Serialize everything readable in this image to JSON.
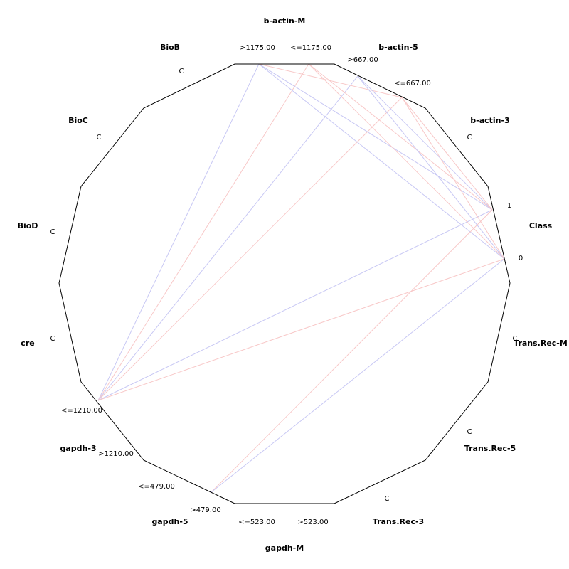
{
  "axes": [
    {
      "name": "b-actin-M",
      "values": [
        ">1175.00",
        "<=1175.00"
      ]
    },
    {
      "name": "b-actin-5",
      "values": [
        ">667.00",
        "<=667.00"
      ]
    },
    {
      "name": "b-actin-3",
      "values": [
        "C"
      ]
    },
    {
      "name": "Class",
      "values": [
        "1",
        "0"
      ]
    },
    {
      "name": "Trans.Rec-M",
      "values": [
        "C"
      ]
    },
    {
      "name": "Trans.Rec-5",
      "values": [
        "C"
      ]
    },
    {
      "name": "Trans.Rec-3",
      "values": [
        "C"
      ]
    },
    {
      "name": "gapdh-M",
      "values": [
        ">523.00",
        "<=523.00"
      ]
    },
    {
      "name": "gapdh-5",
      "values": [
        ">479.00",
        "<=479.00"
      ]
    },
    {
      "name": "gapdh-3",
      "values": [
        ">1210.00",
        "<=1210.00"
      ]
    },
    {
      "name": "cre",
      "values": [
        "C"
      ]
    },
    {
      "name": "BioD",
      "values": [
        "C"
      ]
    },
    {
      "name": "BioC",
      "values": [
        "C"
      ]
    },
    {
      "name": "BioB",
      "values": [
        "C"
      ]
    }
  ]
}
